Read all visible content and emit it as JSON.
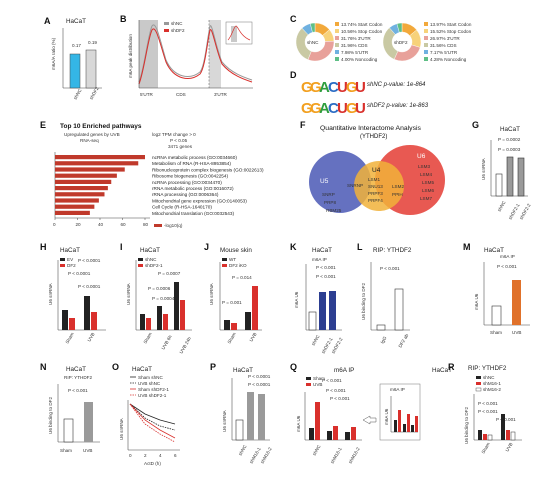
{
  "panels": {
    "A": {
      "letter": "A",
      "title": "HaCaT",
      "ylabel": "m6A/A ratio (%)",
      "bars": [
        {
          "label": "shNC",
          "value": 0.17,
          "color": "#34b6e6"
        },
        {
          "label": "shDF2",
          "value": 0.19,
          "color": "#d8d8d8"
        }
      ],
      "value_labels": [
        "0.17",
        "0.19"
      ],
      "yticks": [
        "0.0",
        "0.1",
        "0.2",
        "0.3"
      ]
    },
    "B": {
      "letter": "B",
      "ylabel": "m6A peak distribution",
      "legend": [
        "shNC",
        "shDF2"
      ],
      "xlabels": [
        "5'UTR",
        "CDS",
        "3'UTR"
      ]
    },
    "C": {
      "letter": "C",
      "donuts": [
        {
          "center": "shNC",
          "entries": [
            "13.74% Start Codon",
            "10.56% Stop Codon",
            "31.76% 3'UTR",
            "31.96% CDS",
            "7.98% 5'UTR",
            "4.00% Noncoding"
          ]
        },
        {
          "center": "shDF2",
          "entries": [
            "13.97% Start Codon",
            "15.52% Stop Codon",
            "26.97% 3'UTR",
            "31.56% CDS",
            "7.17% 5'UTR",
            "4.28% Noncoding"
          ]
        }
      ],
      "colors": [
        "#f2a93b",
        "#f7d27a",
        "#e8a19a",
        "#c9c9a3",
        "#6fb1e0",
        "#5fbf86"
      ]
    },
    "D": {
      "letter": "D",
      "motif": "GGACUGU",
      "rows": [
        "shNC p-value: 1e-864",
        "shDF2 p-value: 1e-863"
      ]
    },
    "E": {
      "letter": "E",
      "title": "Top 10 Enriched pathways",
      "subtitle": [
        "Upregulated genes by UVB",
        "RNA-seq"
      ],
      "params": [
        "log2 TPM change > 0",
        "P < 0.05",
        "3471 genes"
      ],
      "pathways": [
        "ncRNA metabolic process (GO:0034660)",
        "Metabolism of RNA (R-HSA-8953854)",
        "Ribonucleoprotein complex biogenesis (GO:0022613)",
        "Ribosome biogenesis (GO:0042254)",
        "ncRNA processing (GO:0034470)",
        "rRNA metabolic process (GO:0016072)",
        "rRNA processing (GO:0006364)",
        "Mitochondrial gene expression (GO:0140053)",
        "Cell Cycle (R-HSA-1640170)",
        "Mitochondrial translation (GO:0032543)"
      ],
      "values": [
        80,
        74,
        62,
        55,
        50,
        47,
        44,
        39,
        35,
        31
      ],
      "xticks": [
        "0",
        "20",
        "40",
        "60",
        "80"
      ],
      "legend": "-log10(q)"
    },
    "F": {
      "letter": "F",
      "title": "Quantitative Interactome Analysis",
      "subtitle": "(YTHDF2)",
      "sets": [
        "U5",
        "U4",
        "U6"
      ],
      "u5_only": [
        "SNRP",
        "PRP8",
        "RBM25"
      ],
      "u5_u4": [
        "SNRNP"
      ],
      "u5_u4_u6": [
        "LSM1",
        "SNU13",
        "PRPF3",
        "PRPF4"
      ],
      "u4_u6": [
        "LSM2",
        "PPIH"
      ],
      "u6_only": [
        "LSM3",
        "LSM4",
        "LSM5",
        "LSM6",
        "LSM7"
      ]
    },
    "G": {
      "letter": "G",
      "title": "HaCaT",
      "ylabel": "U6 snRNA",
      "pvals": [
        "P = 0.0002",
        "P = 0.0003"
      ],
      "xlabels": [
        "shNC",
        "shDF2-1",
        "shDF2-2"
      ]
    },
    "H": {
      "letter": "H",
      "title": "HaCaT",
      "legend": [
        "EV",
        "DF2"
      ],
      "ylabel": "U6 snRNA",
      "pvals": [
        "P < 0.0001",
        "P < 0.0001",
        "P < 0.0001"
      ],
      "xlabels": [
        "Sham",
        "UVB"
      ]
    },
    "I": {
      "letter": "I",
      "title": "HaCaT",
      "legend": [
        "shNC",
        "shDF2-1"
      ],
      "ylabel": "U6 snRNA",
      "pvals": [
        "P = 0.0006",
        "P = 0.0004",
        "P = 0.0007"
      ],
      "xlabels": [
        "Sham",
        "UVB 6h",
        "UVB 24h"
      ]
    },
    "J": {
      "letter": "J",
      "title": "Mouse skin",
      "legend": [
        "WT",
        "DF2 iKO"
      ],
      "ylabel": "U6 snRNA",
      "pvals": [
        "P = 0.014",
        "P = 0.001"
      ],
      "xlabels": [
        "Sham",
        "UVB"
      ]
    },
    "K": {
      "letter": "K",
      "title": "HaCaT",
      "subtitle": "m6A IP",
      "ylabel": "m6A U6",
      "pvals": [
        "P < 0.001",
        "P < 0.001"
      ],
      "xlabels": [
        "shNC",
        "shDF2-1",
        "shDF2-2"
      ]
    },
    "L": {
      "letter": "L",
      "title": "RIP: YTHDF2",
      "ylabel": "U6 binding to DF2",
      "pvals": [
        "P < 0.001"
      ],
      "xlabels": [
        "IgG",
        "DF2 ab"
      ]
    },
    "M": {
      "letter": "M",
      "title": "HaCaT",
      "subtitle": "m6A IP",
      "ylabel": "m6A U6",
      "pvals": [
        "P < 0.001"
      ],
      "xlabels": [
        "Sham",
        "UVB"
      ]
    },
    "N": {
      "letter": "N",
      "title": "HaCaT",
      "subtitle": "RIP: YTHDF2",
      "ylabel": "U6 binding to DF2",
      "pvals": [
        "P < 0.001"
      ],
      "xlabels": [
        "Sham",
        "UVB"
      ]
    },
    "O": {
      "letter": "O",
      "title": "HaCaT",
      "legend": [
        "Sham shNC",
        "UVB shNC",
        "Sham shDF2-1",
        "UVB shDF2-1"
      ],
      "ylabel": "U6 snRNA",
      "xlabel": "ActD (h)",
      "xticks": [
        "0",
        "2",
        "4",
        "6"
      ]
    },
    "P": {
      "letter": "P",
      "title": "HaCaT",
      "ylabel": "U6 snRNA",
      "pvals": [
        "P < 0.0001",
        "P < 0.0001"
      ],
      "xlabels": [
        "shNC",
        "shM16-1",
        "shM16-2"
      ]
    },
    "Q": {
      "letter": "Q",
      "title": "m6A IP",
      "legend": [
        "Sham",
        "UVB"
      ],
      "ylabel": "m6A U6",
      "pvals": [
        "P < 0.001",
        "P < 0.001",
        "P < 0.001"
      ],
      "xlabels": [
        "shNC",
        "shM16-1",
        "shM16-2"
      ],
      "inset_title": "m6A IP",
      "inset_ylabel": "m6A U6"
    },
    "R": {
      "letter": "R",
      "title": "HaCaT",
      "subtitle": "RIP: YTHDF2",
      "legend": [
        "shNC",
        "shM16-1",
        "shM16-2"
      ],
      "ylabel": "U6 binding to DF2",
      "pvals": [
        "P < 0.001",
        "P < 0.001",
        "P < 0.001"
      ],
      "xlabels": [
        "Sham",
        "UVB"
      ]
    }
  }
}
